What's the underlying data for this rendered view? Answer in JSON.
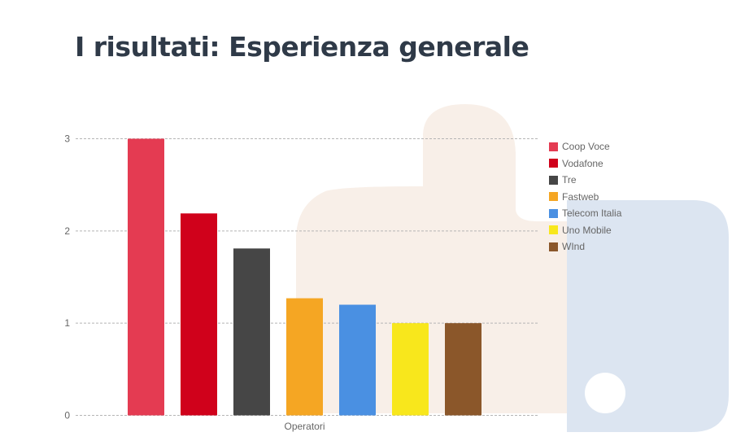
{
  "page": {
    "title": "I risultati: Esperienza generale",
    "decor_colors": {
      "beige": "#f8efe8",
      "blue": "#dce5f1"
    }
  },
  "chart_data": {
    "type": "bar",
    "title": "",
    "xlabel": "Operatori",
    "ylabel": "",
    "ylim": [
      0,
      3
    ],
    "yticks": [
      0,
      1,
      2,
      3
    ],
    "grid": true,
    "gridline_color": "#b5b5b5",
    "legend_position": "right",
    "categories": [
      "Operatori"
    ],
    "series": [
      {
        "name": "Coop Voce",
        "color": "#e43b52",
        "values": [
          3.0
        ]
      },
      {
        "name": "Vodafone",
        "color": "#d0011b",
        "values": [
          2.19
        ]
      },
      {
        "name": "Tre",
        "color": "#464646",
        "values": [
          1.81
        ]
      },
      {
        "name": "Fastweb",
        "color": "#f5a623",
        "values": [
          1.27
        ]
      },
      {
        "name": "Telecom Italia",
        "color": "#4a90e2",
        "values": [
          1.2
        ]
      },
      {
        "name": "Uno Mobile",
        "color": "#f8e71c",
        "values": [
          1.0
        ]
      },
      {
        "name": "WInd",
        "color": "#8b572a",
        "values": [
          1.0
        ]
      }
    ]
  }
}
